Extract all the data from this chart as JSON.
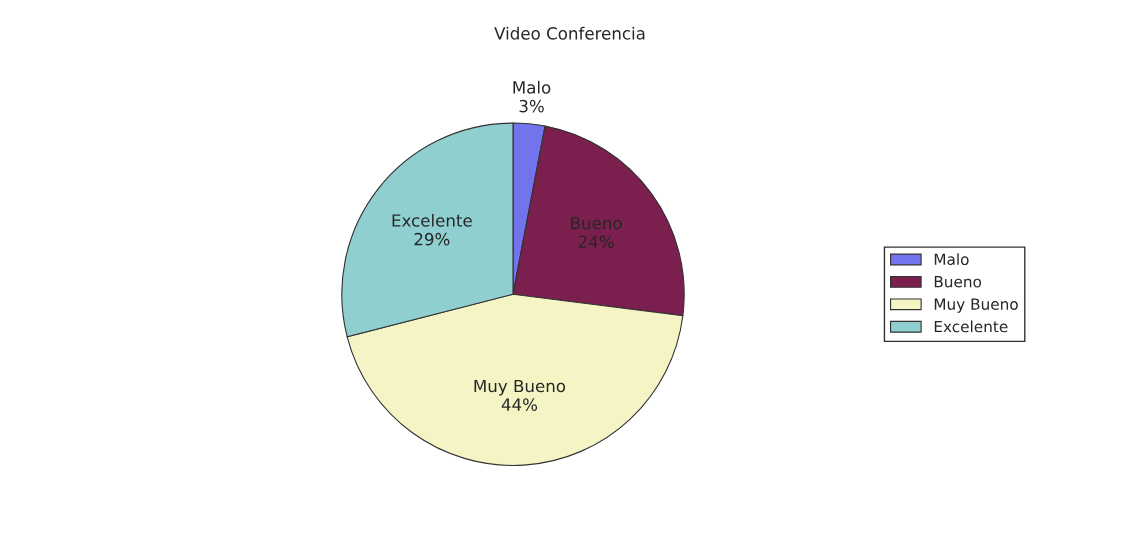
{
  "chart_data": {
    "type": "pie",
    "title": "Video Conferencia",
    "categories": [
      "Malo",
      "Bueno",
      "Muy Bueno",
      "Excelente"
    ],
    "values": [
      3,
      24,
      44,
      29
    ],
    "value_labels": [
      "3%",
      "24%",
      "44%",
      "29%"
    ],
    "colors": [
      "#7373ee",
      "#7b1f4e",
      "#f4f4c4",
      "#8fcfcf"
    ],
    "legend": "right"
  }
}
